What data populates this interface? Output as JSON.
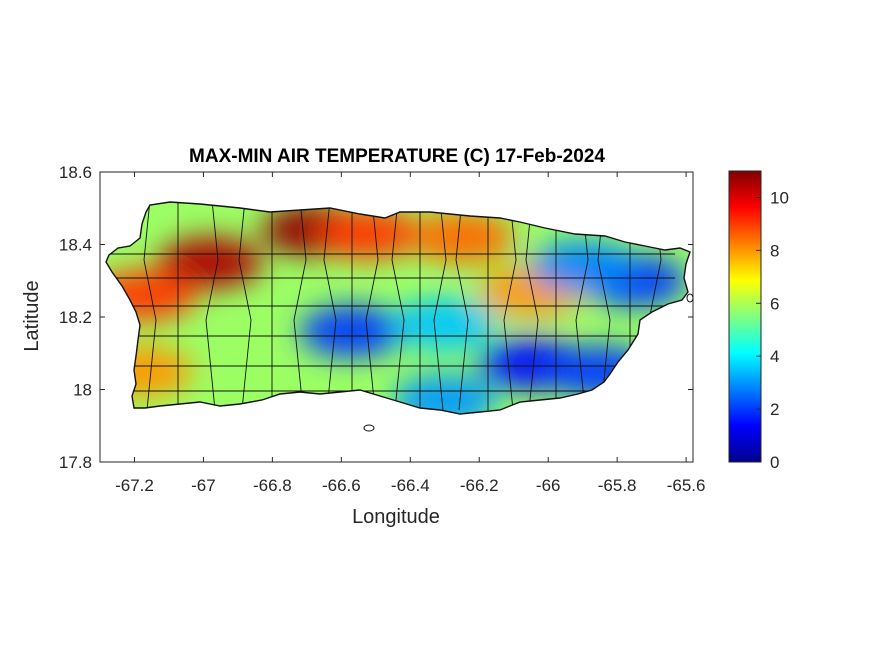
{
  "chart_data": {
    "type": "heatmap",
    "title": "MAX-MIN AIR TEMPERATURE (C) 17-Feb-2024",
    "xlabel": "Longitude",
    "ylabel": "Latitude",
    "xlim": [
      -67.3,
      -65.58
    ],
    "ylim": [
      17.8,
      18.6
    ],
    "xticks": [
      -67.2,
      -67,
      -66.8,
      -66.6,
      -66.4,
      -66.2,
      -66,
      -65.8,
      -65.6
    ],
    "xtick_labels": [
      "-67.2",
      "-67",
      "-66.8",
      "-66.6",
      "-66.4",
      "-66.2",
      "-66",
      "-65.8",
      "-65.6"
    ],
    "yticks": [
      17.8,
      18,
      18.2,
      18.4,
      18.6
    ],
    "ytick_labels": [
      "17.8",
      "18",
      "18.2",
      "18.4",
      "18.6"
    ],
    "colorbar": {
      "colormap": "jet",
      "range": [
        0,
        11
      ],
      "ticks": [
        0,
        2,
        4,
        6,
        8,
        10
      ],
      "tick_labels": [
        "0",
        "2",
        "4",
        "6",
        "8",
        "10"
      ]
    },
    "grid": false,
    "hotspots": [
      {
        "lon": -66.98,
        "lat": 18.35,
        "value": 10.5
      },
      {
        "lon": -66.68,
        "lat": 18.44,
        "value": 10.8
      },
      {
        "lon": -67.17,
        "lat": 18.26,
        "value": 9.0
      },
      {
        "lon": -66.52,
        "lat": 18.43,
        "value": 9.0
      },
      {
        "lon": -66.25,
        "lat": 18.42,
        "value": 8.5
      },
      {
        "lon": -66.05,
        "lat": 18.27,
        "value": 8.0
      },
      {
        "lon": -67.18,
        "lat": 18.05,
        "value": 8.0
      },
      {
        "lon": -66.57,
        "lat": 18.16,
        "value": 2.0
      },
      {
        "lon": -66.05,
        "lat": 18.07,
        "value": 1.5
      },
      {
        "lon": -65.85,
        "lat": 18.05,
        "value": 2.0
      },
      {
        "lon": -65.75,
        "lat": 18.3,
        "value": 2.0
      },
      {
        "lon": -65.9,
        "lat": 18.34,
        "value": 2.8
      },
      {
        "lon": -66.3,
        "lat": 18.18,
        "value": 3.5
      },
      {
        "lon": -66.3,
        "lat": 17.97,
        "value": 3.0
      }
    ],
    "base_value": 5.8
  }
}
